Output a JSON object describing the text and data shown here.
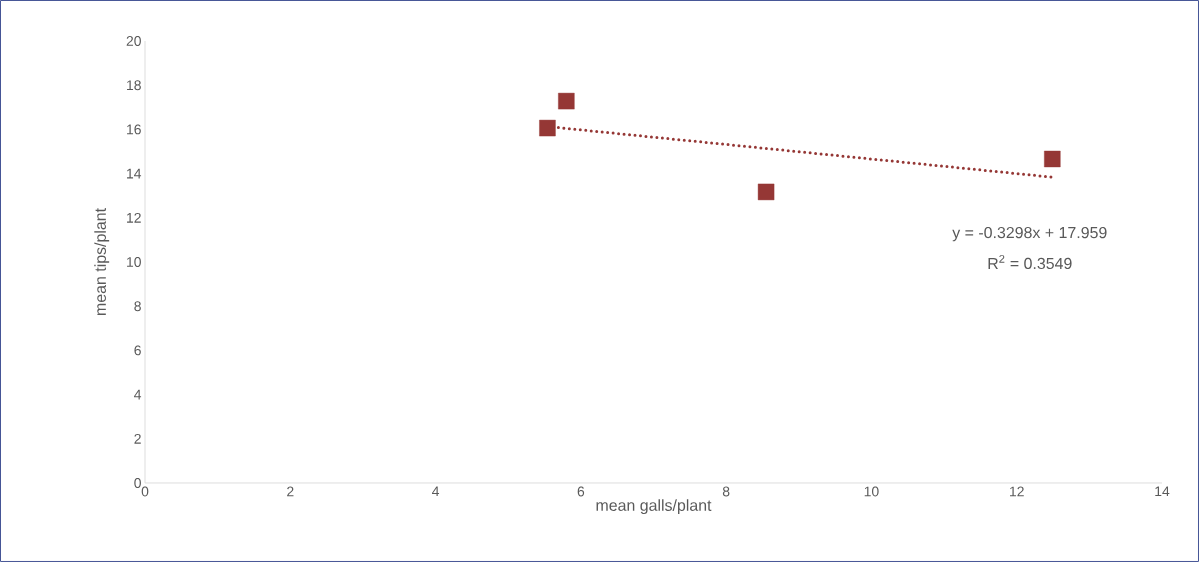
{
  "chart_data": {
    "type": "scatter",
    "xlabel": "mean galls/plant",
    "ylabel": "mean tips/plant",
    "xlim": [
      0,
      14
    ],
    "ylim": [
      0,
      20
    ],
    "xticks": [
      0,
      2,
      4,
      6,
      8,
      10,
      12,
      14
    ],
    "yticks": [
      0,
      2,
      4,
      6,
      8,
      10,
      12,
      14,
      16,
      18,
      20
    ],
    "series": [
      {
        "color": "#953735",
        "x": [
          5.54,
          5.8,
          8.55,
          12.49
        ],
        "values": [
          16.06,
          17.28,
          13.17,
          14.66
        ],
        "marker": "square"
      },
      {
        "type": "line",
        "color": "#953735",
        "x": [
          5.54,
          12.49
        ],
        "values": [
          16.13,
          13.84
        ],
        "line_style": "dotted",
        "marker": "none"
      }
    ],
    "annotations": [
      "y = -0.3298x + 17.959",
      "R$^{2}$ = 0.3549"
    ]
  }
}
